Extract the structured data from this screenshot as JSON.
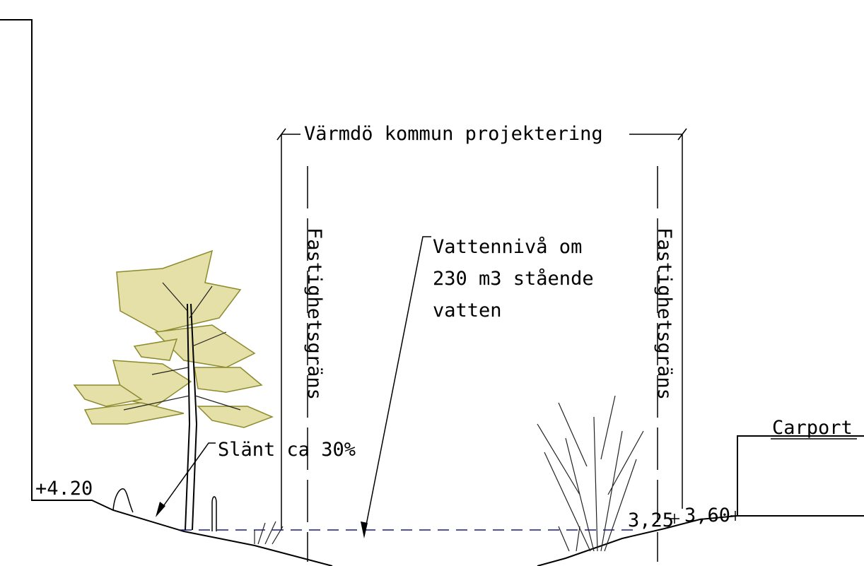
{
  "dimension": {
    "label": "Värmdö kommun projektering"
  },
  "property_lines": [
    {
      "label": "Fastighetsgräns"
    },
    {
      "label": "Fastighetsgräns"
    }
  ],
  "water_note": {
    "lines": [
      "Vattennivå om",
      "230 m3 stående",
      "vatten"
    ]
  },
  "slope_note": {
    "label": "Slänt ca 30%"
  },
  "levels": [
    {
      "label": "+4.20"
    },
    {
      "label": "3,25"
    },
    {
      "label": "3,60"
    }
  ],
  "building": {
    "label": "Carport"
  }
}
